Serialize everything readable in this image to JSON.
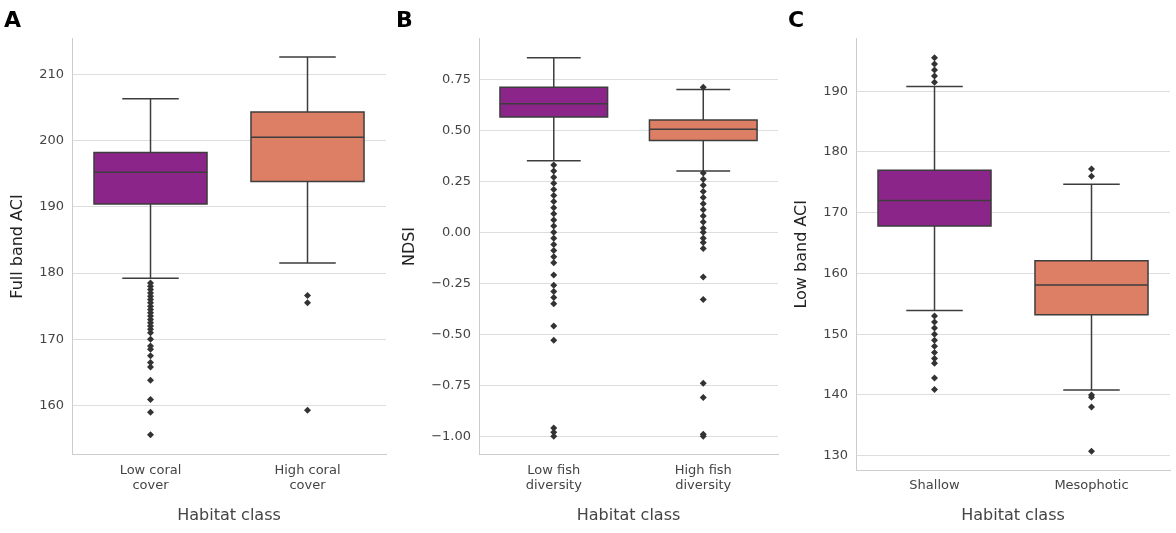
{
  "chart_data": [
    {
      "type": "box",
      "title": "A",
      "xlabel": "Habitat class",
      "ylabel": "Full band ACI",
      "categories": [
        "Low coral\ncover",
        "High coral\ncover"
      ],
      "colors": [
        "#8b2589",
        "#dc7f64"
      ],
      "boxes": [
        {
          "low": 179.2,
          "q1": 190.4,
          "median": 195.2,
          "q3": 198.2,
          "high": 206.3,
          "outliers": [
            178.5,
            178,
            177.5,
            177,
            176.5,
            176,
            175.5,
            175,
            174.5,
            174,
            173.5,
            173,
            172.5,
            172,
            171.5,
            171,
            170,
            169,
            168.5,
            167.5,
            166.5,
            165.8,
            163.8,
            160.9,
            159,
            155.6
          ]
        },
        {
          "low": 181.5,
          "q1": 193.8,
          "median": 200.5,
          "q3": 204.3,
          "high": 212.6,
          "outliers": [
            176.6,
            175.5,
            159.3
          ]
        }
      ],
      "ylim": [
        152.6,
        215.4
      ],
      "yticks": [
        160,
        170,
        180,
        190,
        200,
        210
      ],
      "grid": "y",
      "legend": false,
      "marker": "diamond"
    },
    {
      "type": "box",
      "title": "B",
      "xlabel": "Habitat class",
      "ylabel": "NDSI",
      "categories": [
        "Low fish\ndiversity",
        "High fish\ndiversity"
      ],
      "colors": [
        "#8b2589",
        "#dc7f64"
      ],
      "boxes": [
        {
          "low": 0.35,
          "q1": 0.565,
          "median": 0.63,
          "q3": 0.71,
          "high": 0.855,
          "outliers": [
            0.33,
            0.3,
            0.27,
            0.24,
            0.21,
            0.18,
            0.15,
            0.12,
            0.09,
            0.06,
            0.03,
            0,
            -0.03,
            -0.06,
            -0.09,
            -0.12,
            -0.15,
            -0.21,
            -0.26,
            -0.29,
            -0.32,
            -0.35,
            -0.46,
            -0.53,
            -0.96,
            -0.98,
            -1.0
          ]
        },
        {
          "low": 0.3,
          "q1": 0.45,
          "median": 0.505,
          "q3": 0.55,
          "high": 0.7,
          "outliers": [
            0.71,
            0.29,
            0.26,
            0.23,
            0.2,
            0.17,
            0.14,
            0.11,
            0.08,
            0.05,
            0.02,
            0,
            -0.03,
            -0.05,
            -0.08,
            -0.22,
            -0.33,
            -0.74,
            -0.81,
            -0.99,
            -1.0
          ]
        }
      ],
      "ylim": [
        -1.09,
        0.95
      ],
      "yticks": [
        {
          "value": -1,
          "label": "−1.00"
        },
        {
          "value": -0.75,
          "label": "−0.75"
        },
        {
          "value": -0.5,
          "label": "−0.50"
        },
        {
          "value": -0.25,
          "label": "−0.25"
        },
        {
          "value": 0,
          "label": "0.00"
        },
        {
          "value": 0.25,
          "label": "0.25"
        },
        {
          "value": 0.5,
          "label": "0.50"
        },
        {
          "value": 0.75,
          "label": "0.75"
        }
      ],
      "grid": "y",
      "legend": false,
      "marker": "diamond"
    },
    {
      "type": "box",
      "title": "C",
      "xlabel": "Habitat class",
      "ylabel": "Low band ACI",
      "categories": [
        "Shallow",
        "Mesophotic"
      ],
      "colors": [
        "#8b2589",
        "#dc7f64"
      ],
      "boxes": [
        {
          "low": 153.9,
          "q1": 167.8,
          "median": 172,
          "q3": 177,
          "high": 190.8,
          "outliers": [
            195.5,
            194.5,
            193.5,
            192.5,
            191.5,
            153,
            152,
            151,
            150,
            149,
            148,
            147,
            146,
            145.2,
            142.8,
            140.9
          ]
        },
        {
          "low": 140.8,
          "q1": 153.2,
          "median": 158.1,
          "q3": 162.1,
          "high": 174.7,
          "outliers": [
            177.2,
            176,
            140,
            139.6,
            138,
            130.7
          ]
        }
      ],
      "ylim": [
        127.6,
        198.7
      ],
      "yticks": [
        130,
        140,
        150,
        160,
        170,
        180,
        190
      ],
      "grid": "y",
      "legend": false,
      "marker": "diamond"
    }
  ]
}
